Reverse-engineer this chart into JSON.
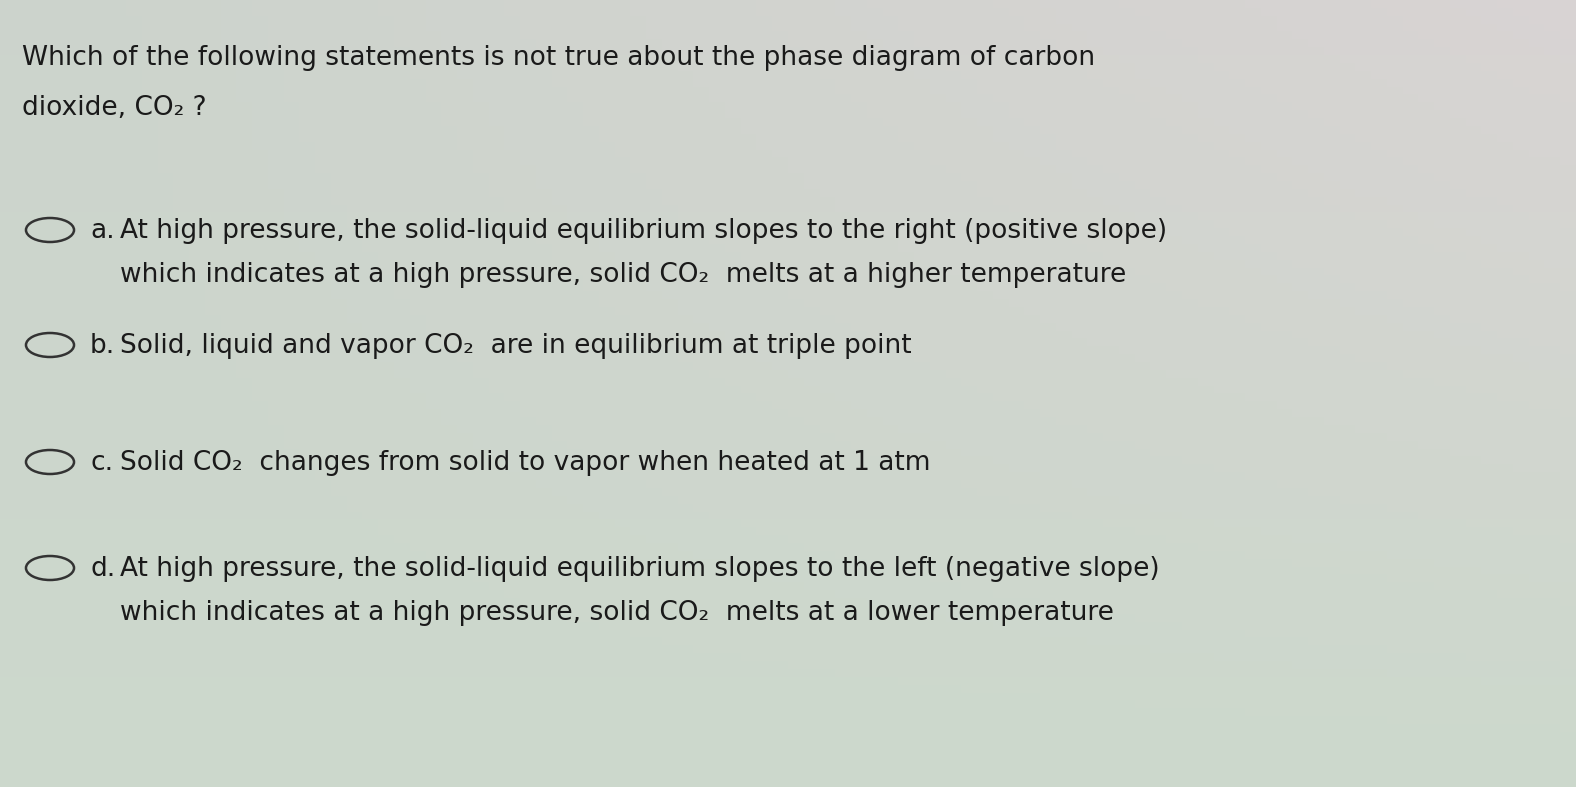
{
  "background_color": "#cdd9cc",
  "text_color": "#1a1a1a",
  "question_line1": "Which of the following statements is not true about the phase diagram of carbon",
  "question_line2": "dioxide, CO₂ ?",
  "options": [
    {
      "label": "a.",
      "line1": "At high pressure, the solid-liquid equilibrium slopes to the right (positive slope)",
      "line2": "which indicates at a high pressure, solid CO₂  melts at a higher temperature"
    },
    {
      "label": "b.",
      "line1": "Solid, liquid and vapor CO₂  are in equilibrium at triple point",
      "line2": null
    },
    {
      "label": "c.",
      "line1": "Solid CO₂  changes from solid to vapor when heated at 1 atm",
      "line2": null
    },
    {
      "label": "d.",
      "line1": "At high pressure, the solid-liquid equilibrium slopes to the left (negative slope)",
      "line2": "which indicates at a high pressure, solid CO₂  melts at a lower temperature"
    }
  ],
  "circle_color": "#333333",
  "question_fontsize": 19,
  "option_fontsize": 19,
  "figsize": [
    15.76,
    7.87
  ],
  "dpi": 100
}
